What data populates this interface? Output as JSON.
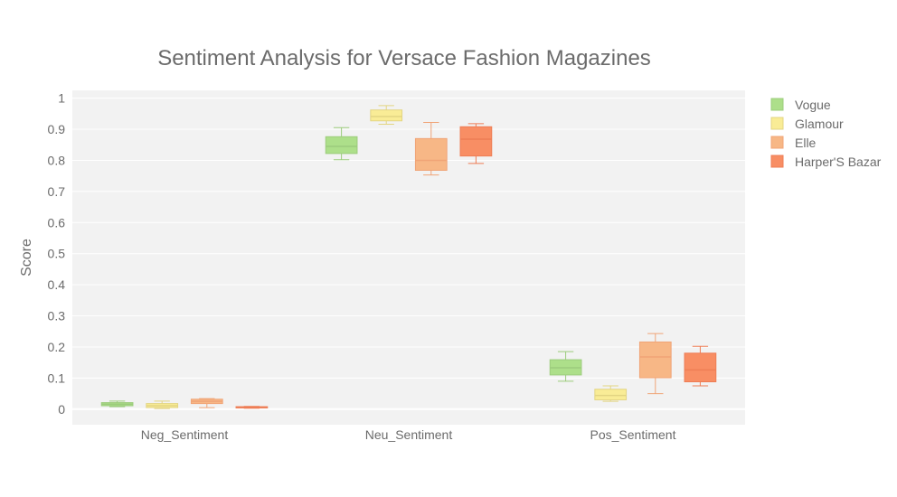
{
  "chart_data": {
    "type": "box",
    "title": "Sentiment Analysis for Versace Fashion Magazines",
    "xlabel": "",
    "ylabel": "Score",
    "categories": [
      "Neg_Sentiment",
      "Neu_Sentiment",
      "Pos_Sentiment"
    ],
    "ylim": [
      -0.05,
      1.025
    ],
    "yticks": [
      0,
      0.1,
      0.2,
      0.3,
      0.4,
      0.5,
      0.6,
      0.7,
      0.8,
      0.9,
      1
    ],
    "ytick_labels": [
      "0",
      "0.1",
      "0.2",
      "0.3",
      "0.4",
      "0.5",
      "0.6",
      "0.7",
      "0.8",
      "0.9",
      "1"
    ],
    "grid": true,
    "legend_position": "top-right",
    "series": [
      {
        "name": "Vogue",
        "fill": "#addf8a",
        "line": "#9ccc7c",
        "boxes": [
          {
            "min": 0.008,
            "q1": 0.011,
            "median": 0.016,
            "q3": 0.021,
            "max": 0.026
          },
          {
            "min": 0.802,
            "q1": 0.822,
            "median": 0.845,
            "q3": 0.876,
            "max": 0.905
          },
          {
            "min": 0.09,
            "q1": 0.11,
            "median": 0.133,
            "q3": 0.159,
            "max": 0.185
          }
        ]
      },
      {
        "name": "Glamour",
        "fill": "#f9ec96",
        "line": "#e3d583",
        "boxes": [
          {
            "min": 0.002,
            "q1": 0.005,
            "median": 0.011,
            "q3": 0.018,
            "max": 0.026
          },
          {
            "min": 0.916,
            "q1": 0.927,
            "median": 0.941,
            "q3": 0.962,
            "max": 0.976
          },
          {
            "min": 0.025,
            "q1": 0.03,
            "median": 0.044,
            "q3": 0.064,
            "max": 0.075
          }
        ]
      },
      {
        "name": "Elle",
        "fill": "#f7b786",
        "line": "#f0a477",
        "boxes": [
          {
            "min": 0.005,
            "q1": 0.018,
            "median": 0.025,
            "q3": 0.032,
            "max": 0.034
          },
          {
            "min": 0.753,
            "q1": 0.768,
            "median": 0.8,
            "q3": 0.87,
            "max": 0.922
          },
          {
            "min": 0.05,
            "q1": 0.101,
            "median": 0.168,
            "q3": 0.216,
            "max": 0.243
          }
        ]
      },
      {
        "name": "Harper'S Bazar",
        "fill": "#f88e64",
        "line": "#ee7d55",
        "boxes": [
          {
            "min": 0.003,
            "q1": 0.004,
            "median": 0.006,
            "q3": 0.008,
            "max": 0.009
          },
          {
            "min": 0.79,
            "q1": 0.814,
            "median": 0.868,
            "q3": 0.908,
            "max": 0.918
          },
          {
            "min": 0.075,
            "q1": 0.088,
            "median": 0.126,
            "q3": 0.18,
            "max": 0.202
          }
        ]
      }
    ]
  }
}
